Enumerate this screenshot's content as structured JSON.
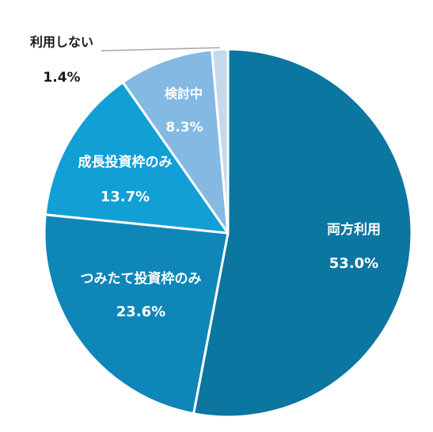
{
  "chart_data": {
    "type": "pie",
    "title": "",
    "start_angle_deg": 0,
    "direction": "clockwise",
    "slices": [
      {
        "name": "両方利用",
        "value": 53.0,
        "value_label": "53.0%",
        "color": "#0b76a0",
        "label_color": "#ffffff"
      },
      {
        "name": "つみたて投資枠のみ",
        "value": 23.6,
        "value_label": "23.6%",
        "color": "#0f86b8",
        "label_color": "#ffffff"
      },
      {
        "name": "成長投資枠のみ",
        "value": 13.7,
        "value_label": "13.7%",
        "color": "#119fd6",
        "label_color": "#ffffff"
      },
      {
        "name": "検討中",
        "value": 8.3,
        "value_label": "8.3%",
        "color": "#83b9e2",
        "label_color": "#ffffff"
      },
      {
        "name": "利用しない",
        "value": 1.4,
        "value_label": "1.4%",
        "color": "#c4d9ee",
        "label_color": "#1a1a1a",
        "label_outside": true,
        "leader_line_color": "#a6a6a6"
      }
    ]
  }
}
